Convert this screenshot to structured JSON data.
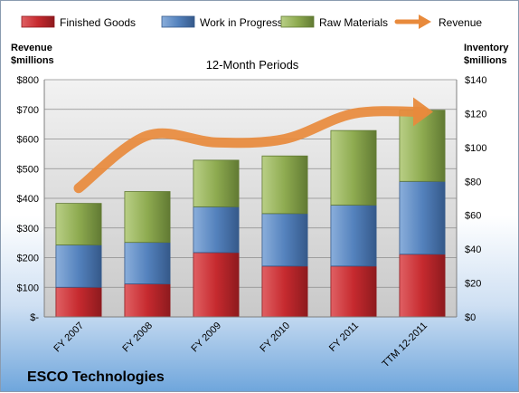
{
  "chart_data": {
    "type": "bar",
    "stacked": true,
    "subtitle": "12-Month Periods",
    "company": "ESCO Technologies",
    "categories": [
      "FY 2007",
      "FY 2008",
      "FY 2009",
      "FY 2010",
      "FY 2011",
      "TTM 12-2011"
    ],
    "left_axis": {
      "title_line1": "Revenue",
      "title_line2": "$millions",
      "ylim": [
        0,
        800
      ],
      "ticks": [
        "$-",
        "$100",
        "$200",
        "$300",
        "$400",
        "$500",
        "$600",
        "$700",
        "$800"
      ]
    },
    "right_axis": {
      "title_line1": "Inventory",
      "title_line2": "$millions",
      "ylim": [
        0,
        140
      ],
      "ticks": [
        "$0",
        "$20",
        "$40",
        "$60",
        "$80",
        "$100",
        "$120",
        "$140"
      ]
    },
    "series": [
      {
        "name": "Finished Goods",
        "axis": "right",
        "color": "#c0272d",
        "values": [
          17.5,
          19.5,
          38,
          30,
          30,
          37
        ]
      },
      {
        "name": "Work in Progress",
        "axis": "right",
        "color": "#4f81bd",
        "values": [
          25,
          24.5,
          27,
          31,
          36,
          43
        ]
      },
      {
        "name": "Raw Materials",
        "axis": "right",
        "color": "#8aa84c",
        "values": [
          24.5,
          30,
          27.5,
          34,
          44,
          42
        ]
      },
      {
        "name": "Revenue",
        "axis": "left",
        "type": "line",
        "color": "#e88a3c",
        "values": [
          76,
          107,
          103,
          105,
          120,
          121
        ]
      }
    ],
    "grid": true,
    "legend_position": "top"
  }
}
